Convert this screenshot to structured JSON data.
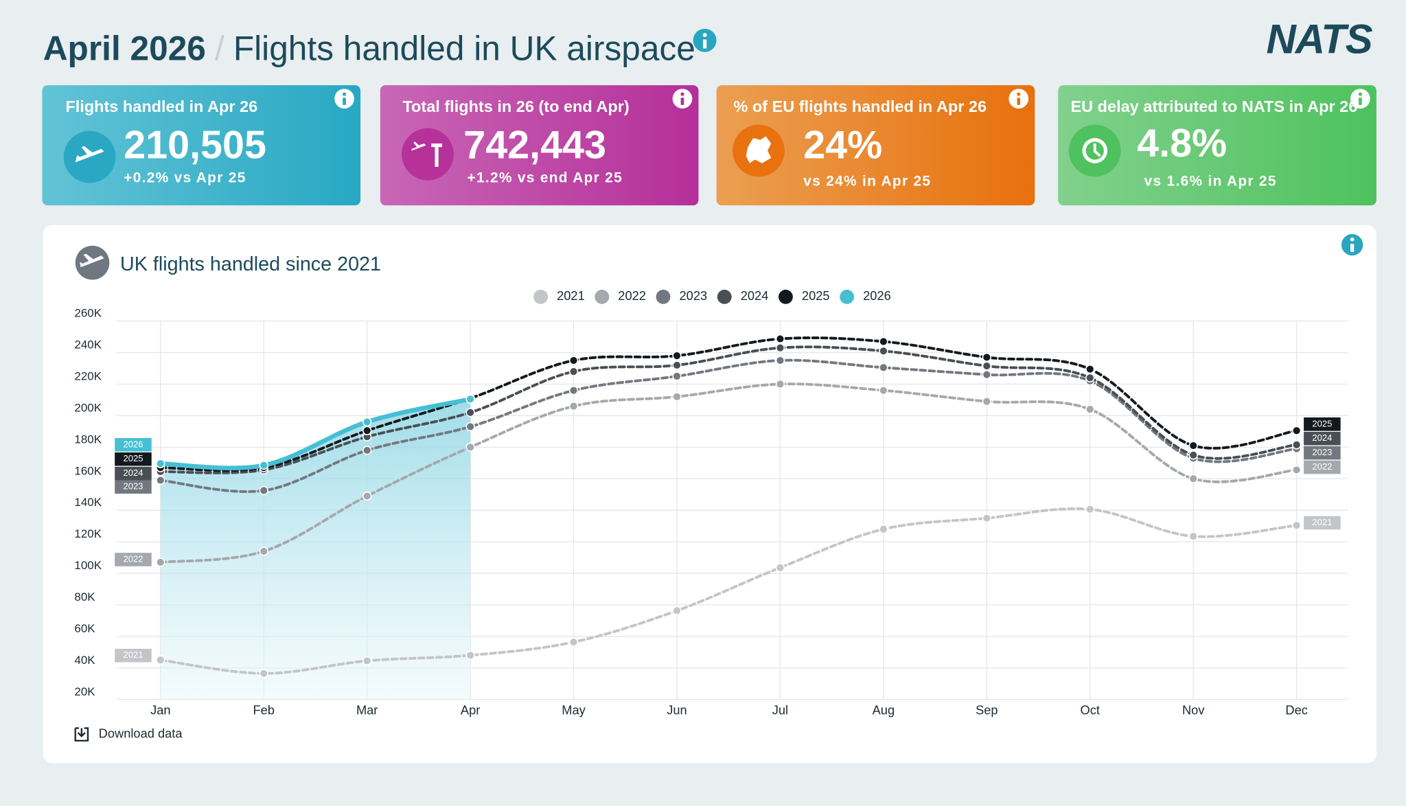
{
  "header": {
    "title_bold": "April 2026",
    "separator": "/",
    "title": "Flights handled in UK airspace",
    "logo": "NATS"
  },
  "cards": [
    {
      "label": "Flights handled in Apr 26",
      "value": "210,505",
      "comparison": "+0.2% vs Apr 25"
    },
    {
      "label": "Total flights in 26 (to end Apr)",
      "value": "742,443",
      "comparison": "+1.2% vs end Apr 25"
    },
    {
      "label": "% of EU flights handled in Apr 26",
      "value": "24%",
      "comparison": "vs 24% in Apr 25"
    },
    {
      "label": "EU delay attributed to NATS in Apr 26",
      "value": "4.8%",
      "comparison": "vs 1.6% in Apr 25"
    }
  ],
  "download": "Download data",
  "chart_data": {
    "type": "line",
    "title": "UK flights handled since 2021",
    "categories": [
      "Jan",
      "Feb",
      "Mar",
      "Apr",
      "May",
      "Jun",
      "Jul",
      "Aug",
      "Sep",
      "Oct",
      "Nov",
      "Dec"
    ],
    "series": [
      {
        "name": "2021",
        "color": "#c3c5c8",
        "values": [
          45000,
          36500,
          44500,
          48000,
          56400,
          76300,
          103600,
          128000,
          135000,
          140600,
          123500,
          130400
        ]
      },
      {
        "name": "2022",
        "color": "#a5a8ac",
        "values": [
          107000,
          114000,
          149000,
          180000,
          206000,
          212000,
          220000,
          216000,
          209000,
          204000,
          160000,
          165600
        ]
      },
      {
        "name": "2023",
        "color": "#737880",
        "values": [
          159000,
          152500,
          178000,
          193000,
          216000,
          225000,
          235000,
          230500,
          226000,
          222000,
          173000,
          179000
        ]
      },
      {
        "name": "2024",
        "color": "#4a4f55",
        "values": [
          164500,
          165600,
          186600,
          202000,
          228000,
          232000,
          243000,
          241000,
          231500,
          224000,
          175000,
          181500
        ]
      },
      {
        "name": "2025",
        "color": "#14191e",
        "values": [
          167000,
          167000,
          190500,
          211000,
          235000,
          238000,
          248700,
          247000,
          237000,
          229500,
          181000,
          190500
        ]
      },
      {
        "name": "2026",
        "color": "#46bfd3",
        "values": [
          169600,
          168500,
          196000,
          210505,
          null,
          null,
          null,
          null,
          null,
          null,
          null,
          null
        ]
      }
    ],
    "ylim": [
      20000,
      260000
    ],
    "yticks": [
      {
        "value": 20000,
        "label": "20K"
      },
      {
        "value": 40000,
        "label": "40K"
      },
      {
        "value": 60000,
        "label": "60K"
      },
      {
        "value": 80000,
        "label": "80K"
      },
      {
        "value": 100000,
        "label": "100K"
      },
      {
        "value": 120000,
        "label": "120K"
      },
      {
        "value": 140000,
        "label": "140K"
      },
      {
        "value": 160000,
        "label": "160K"
      },
      {
        "value": 180000,
        "label": "180K"
      },
      {
        "value": 200000,
        "label": "200K"
      },
      {
        "value": 220000,
        "label": "220K"
      },
      {
        "value": 240000,
        "label": "240K"
      },
      {
        "value": 260000,
        "label": "260K"
      }
    ],
    "grid": true,
    "legend": "top"
  }
}
